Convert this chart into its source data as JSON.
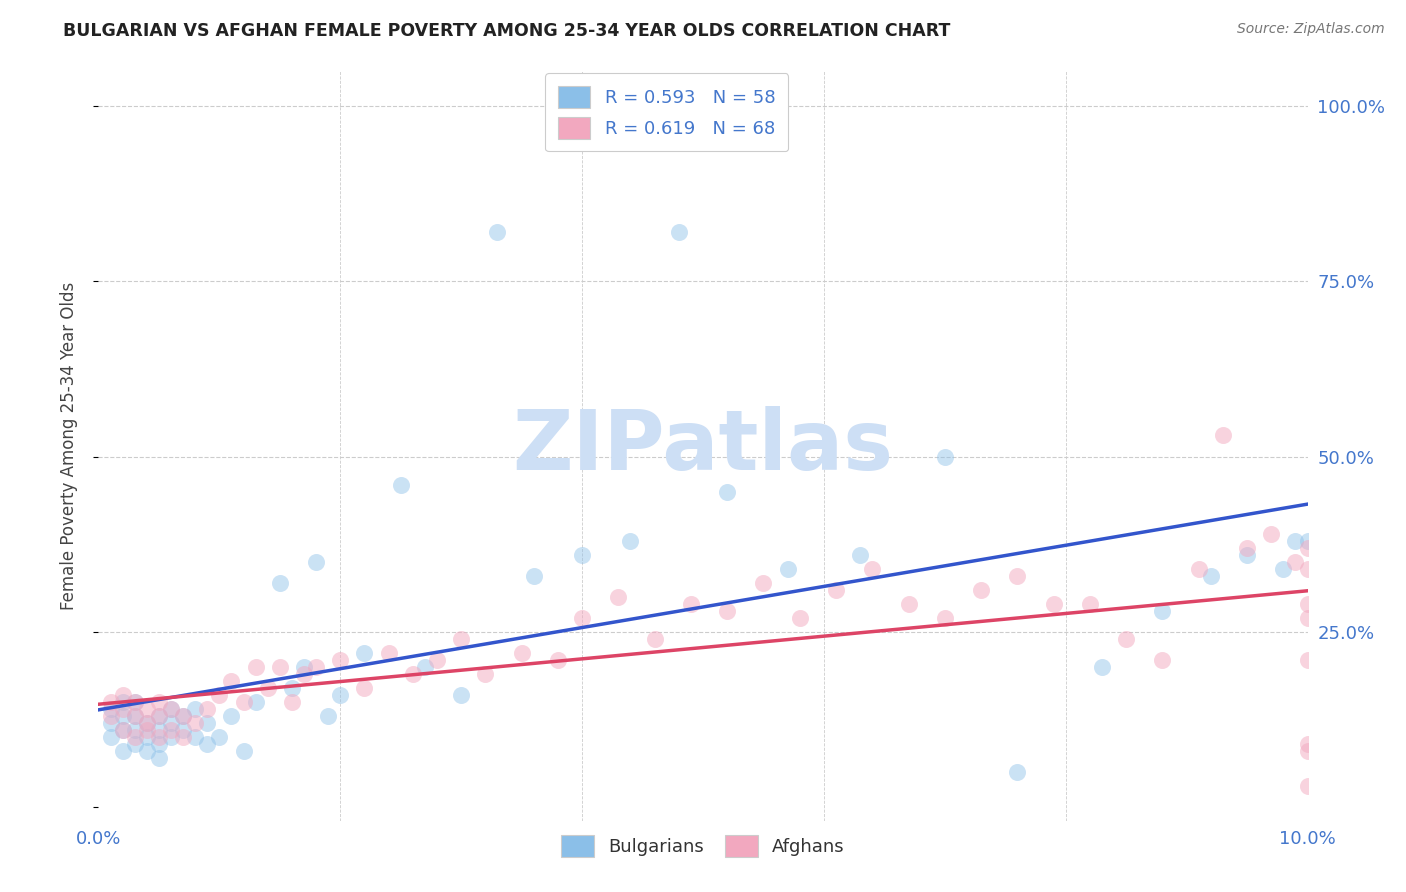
{
  "title": "BULGARIAN VS AFGHAN FEMALE POVERTY AMONG 25-34 YEAR OLDS CORRELATION CHART",
  "source": "Source: ZipAtlas.com",
  "ylabel": "Female Poverty Among 25-34 Year Olds",
  "ytick_vals": [
    0.0,
    0.25,
    0.5,
    0.75,
    1.0
  ],
  "ytick_labels": [
    "",
    "25.0%",
    "50.0%",
    "75.0%",
    "100.0%"
  ],
  "xlim": [
    0.0,
    0.1
  ],
  "ylim": [
    -0.02,
    1.05
  ],
  "bg_color": "#ffffff",
  "watermark_text": "ZIPatlas",
  "watermark_color": "#cddff5",
  "legend_line1": "R = 0.593   N = 58",
  "legend_line2": "R = 0.619   N = 68",
  "bulgarian_color": "#8bbfe8",
  "afghan_color": "#f2a8bf",
  "bulgarian_line_color": "#3355cc",
  "afghan_line_color": "#dd4466",
  "tick_color": "#4477cc",
  "grid_color": "#cccccc",
  "bulgarian_x": [
    0.001,
    0.001,
    0.001,
    0.002,
    0.002,
    0.002,
    0.002,
    0.003,
    0.003,
    0.003,
    0.003,
    0.004,
    0.004,
    0.004,
    0.005,
    0.005,
    0.005,
    0.005,
    0.006,
    0.006,
    0.006,
    0.007,
    0.007,
    0.008,
    0.008,
    0.009,
    0.009,
    0.01,
    0.011,
    0.012,
    0.013,
    0.015,
    0.016,
    0.017,
    0.018,
    0.019,
    0.02,
    0.022,
    0.025,
    0.027,
    0.03,
    0.033,
    0.036,
    0.04,
    0.044,
    0.048,
    0.052,
    0.057,
    0.063,
    0.07,
    0.076,
    0.083,
    0.088,
    0.092,
    0.095,
    0.098,
    0.099,
    0.1
  ],
  "bulgarian_y": [
    0.1,
    0.12,
    0.14,
    0.08,
    0.11,
    0.13,
    0.15,
    0.09,
    0.11,
    0.13,
    0.15,
    0.1,
    0.12,
    0.08,
    0.09,
    0.11,
    0.13,
    0.07,
    0.1,
    0.12,
    0.14,
    0.11,
    0.13,
    0.1,
    0.14,
    0.09,
    0.12,
    0.1,
    0.13,
    0.08,
    0.15,
    0.32,
    0.17,
    0.2,
    0.35,
    0.13,
    0.16,
    0.22,
    0.46,
    0.2,
    0.16,
    0.82,
    0.33,
    0.36,
    0.38,
    0.82,
    0.45,
    0.34,
    0.36,
    0.5,
    0.05,
    0.2,
    0.28,
    0.33,
    0.36,
    0.34,
    0.38,
    0.38
  ],
  "afghan_x": [
    0.001,
    0.001,
    0.002,
    0.002,
    0.002,
    0.003,
    0.003,
    0.003,
    0.004,
    0.004,
    0.004,
    0.005,
    0.005,
    0.005,
    0.006,
    0.006,
    0.007,
    0.007,
    0.008,
    0.009,
    0.01,
    0.011,
    0.012,
    0.013,
    0.014,
    0.015,
    0.016,
    0.017,
    0.018,
    0.02,
    0.022,
    0.024,
    0.026,
    0.028,
    0.03,
    0.032,
    0.035,
    0.038,
    0.04,
    0.043,
    0.046,
    0.049,
    0.052,
    0.055,
    0.058,
    0.061,
    0.064,
    0.067,
    0.07,
    0.073,
    0.076,
    0.079,
    0.082,
    0.085,
    0.088,
    0.091,
    0.093,
    0.095,
    0.097,
    0.099,
    0.1,
    0.1,
    0.1,
    0.1,
    0.1,
    0.1,
    0.1,
    0.1
  ],
  "afghan_y": [
    0.13,
    0.15,
    0.11,
    0.14,
    0.16,
    0.1,
    0.13,
    0.15,
    0.11,
    0.14,
    0.12,
    0.1,
    0.13,
    0.15,
    0.11,
    0.14,
    0.1,
    0.13,
    0.12,
    0.14,
    0.16,
    0.18,
    0.15,
    0.2,
    0.17,
    0.2,
    0.15,
    0.19,
    0.2,
    0.21,
    0.17,
    0.22,
    0.19,
    0.21,
    0.24,
    0.19,
    0.22,
    0.21,
    0.27,
    0.3,
    0.24,
    0.29,
    0.28,
    0.32,
    0.27,
    0.31,
    0.34,
    0.29,
    0.27,
    0.31,
    0.33,
    0.29,
    0.29,
    0.24,
    0.21,
    0.34,
    0.53,
    0.37,
    0.39,
    0.35,
    0.37,
    0.29,
    0.03,
    0.21,
    0.09,
    0.08,
    0.27,
    0.34
  ]
}
